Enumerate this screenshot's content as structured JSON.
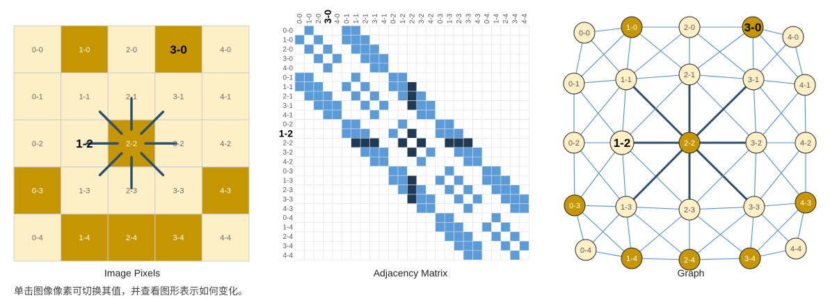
{
  "grid": {
    "size": 5,
    "cells": [
      [
        "0-0",
        "1-0",
        "2-0",
        "3-0",
        "4-0"
      ],
      [
        "0-1",
        "1-1",
        "2-1",
        "3-1",
        "4-1"
      ],
      [
        "0-2",
        "1-2",
        "2-2",
        "3-2",
        "4-2"
      ],
      [
        "0-3",
        "1-3",
        "2-3",
        "3-3",
        "4-3"
      ],
      [
        "0-4",
        "1-4",
        "2-4",
        "3-4",
        "4-4"
      ]
    ],
    "dark_cells": [
      "1-0",
      "3-0",
      "2-2",
      "0-3",
      "4-3",
      "1-4",
      "2-4",
      "3-4"
    ],
    "selected_cell": "2-2",
    "neighbors": [
      "1-1",
      "2-1",
      "3-1",
      "1-2",
      "3-2",
      "1-3",
      "2-3",
      "3-3"
    ],
    "hovered_cell": "1-2",
    "bold_cell": "3-0"
  },
  "matrix": {
    "labels": [
      "0-0",
      "1-0",
      "2-0",
      "3-0",
      "4-0",
      "0-1",
      "1-1",
      "2-1",
      "3-1",
      "4-1",
      "0-2",
      "1-2",
      "2-2",
      "3-2",
      "4-2",
      "0-3",
      "1-3",
      "2-3",
      "3-3",
      "4-3",
      "0-4",
      "1-4",
      "2-4",
      "3-4",
      "4-4"
    ]
  },
  "captions": {
    "pixels": "Image Pixels",
    "matrix": "Adjacency Matrix",
    "graph": "Graph"
  },
  "footer_text": "单击图像像素可切换其值，并查看图形表示如何变化。",
  "colors": {
    "light_fill": "#fdf0c7",
    "dark_fill": "#c69600",
    "grid_line": "#cccccc",
    "edge_blue": "#4a90c8",
    "edge_dark": "#2f4f6f",
    "matrix_blue": "#5a9bd9",
    "matrix_dark": "#1f3a55"
  }
}
